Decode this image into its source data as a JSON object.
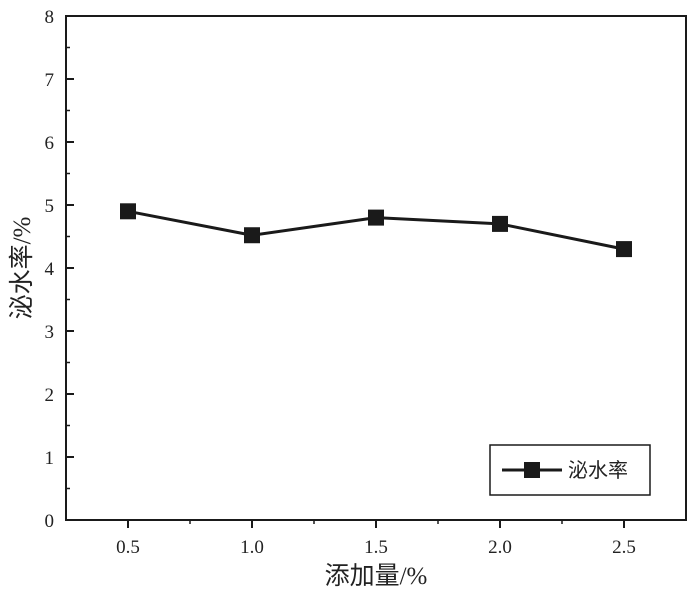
{
  "chart_data": {
    "type": "line",
    "title": "",
    "xlabel": "添加量/%",
    "ylabel": "泌水率/%",
    "x": [
      0.5,
      1.0,
      1.5,
      2.0,
      2.5
    ],
    "x_tick_labels": [
      "0.5",
      "1.0",
      "1.5",
      "2.0",
      "2.5"
    ],
    "xlim": [
      0.25,
      2.75
    ],
    "ylim": [
      0,
      8
    ],
    "y_ticks": [
      0,
      1,
      2,
      3,
      4,
      5,
      6,
      7,
      8
    ],
    "y_tick_labels": [
      "0",
      "1",
      "2",
      "3",
      "4",
      "5",
      "6",
      "7",
      "8"
    ],
    "grid": false,
    "legend_position": "bottom-right",
    "series": [
      {
        "name": "泌水率",
        "values": [
          4.9,
          4.52,
          4.8,
          4.7,
          4.3
        ],
        "marker": "square",
        "color": "#1a1a1a"
      }
    ]
  }
}
